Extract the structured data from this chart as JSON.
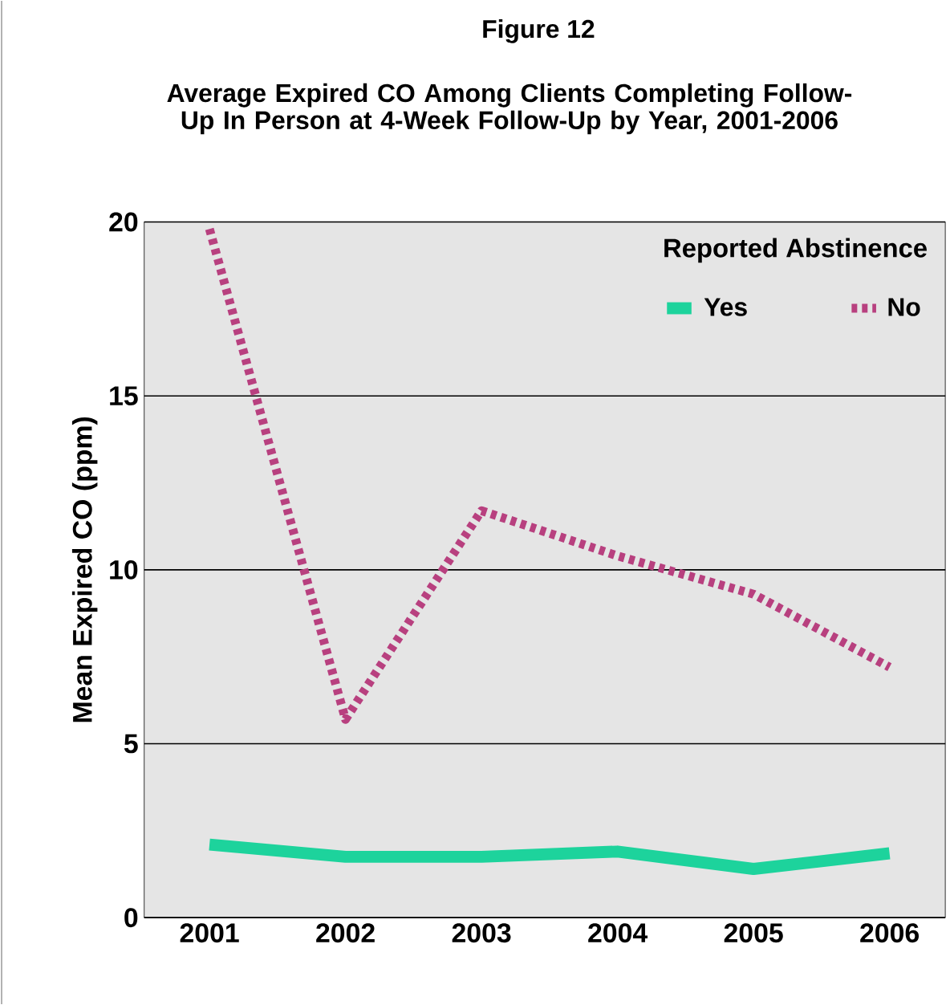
{
  "chart_data": {
    "type": "line",
    "title": "Figure 12",
    "subtitle": "Average Expired CO Among Clients Completing Follow-Up In Person at 4-Week Follow-Up by Year, 2001-2006",
    "ylabel": "Mean Expired CO (ppm)",
    "legend_title": "Reported Abstinence",
    "categories": [
      "2001",
      "2002",
      "2003",
      "2004",
      "2005",
      "2006"
    ],
    "series": [
      {
        "name": "Yes",
        "color": "#1dd39c",
        "line_style": "solid",
        "values": [
          2.1,
          1.75,
          1.75,
          1.9,
          1.4,
          1.85
        ]
      },
      {
        "name": "No",
        "color": "#b8407f",
        "line_style": "dotted",
        "values": [
          19.8,
          5.7,
          11.7,
          10.4,
          9.3,
          7.2
        ]
      }
    ],
    "ylim": [
      0,
      20
    ],
    "yticks": [
      0,
      5,
      10,
      15,
      20
    ],
    "grid": "y",
    "legend": "top right",
    "marker": "none"
  }
}
